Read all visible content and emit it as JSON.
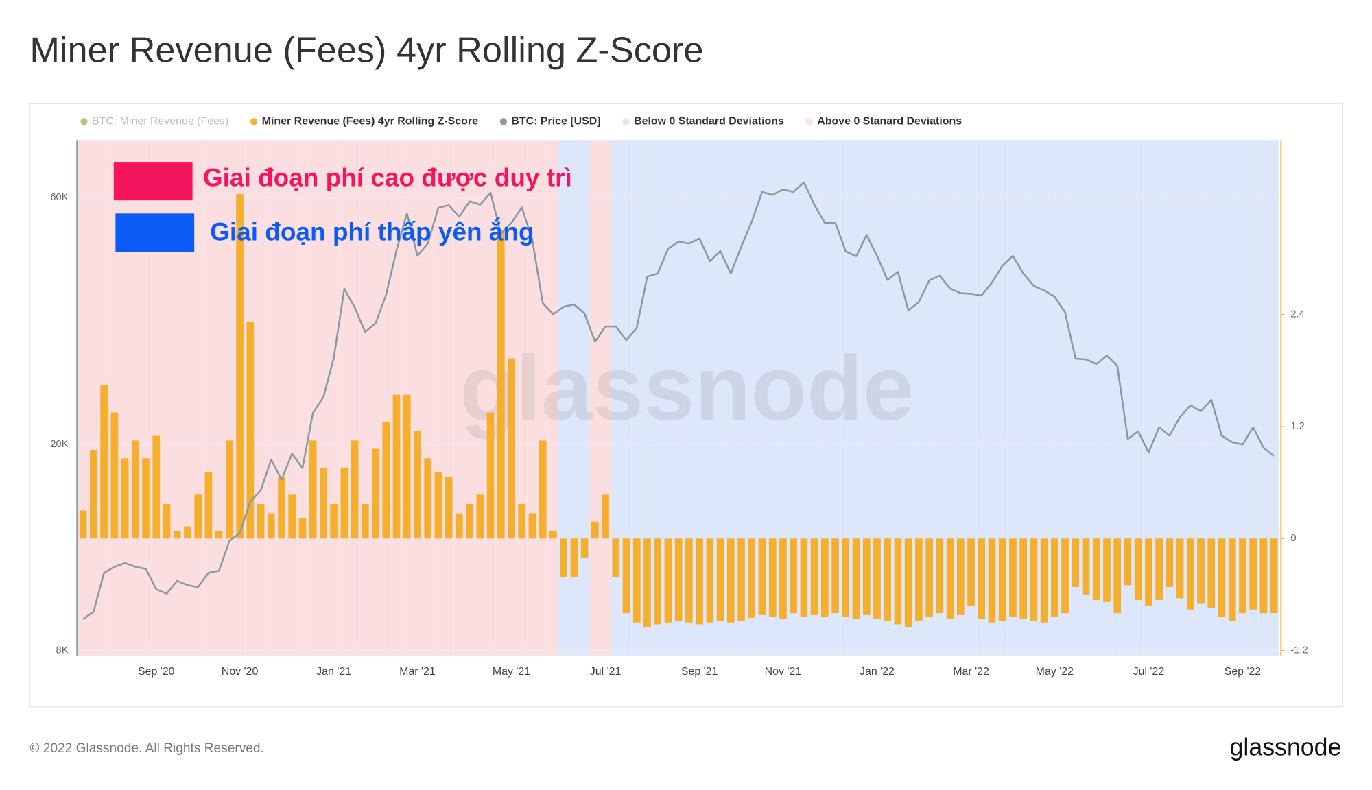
{
  "chart_data": {
    "type": "bar-line",
    "title": "Miner Revenue (Fees) 4yr Rolling Z-Score",
    "legend_disabled": {
      "name": "BTC: Miner Revenue (Fees)",
      "color": "#7d9a2c"
    },
    "series": [
      {
        "name": "Miner Revenue (Fees) 4yr Rolling Z-Score",
        "color": "#f6ae2d",
        "axis": "y2",
        "values": [
          0.3,
          0.95,
          1.64,
          1.35,
          0.86,
          1.05,
          0.86,
          1.1,
          0.37,
          0.08,
          0.13,
          0.47,
          0.71,
          0.08,
          1.05,
          3.69,
          2.32,
          0.37,
          0.27,
          0.66,
          0.47,
          0.22,
          1.05,
          0.76,
          0.37,
          0.76,
          1.05,
          0.37,
          0.96,
          1.25,
          1.54,
          1.54,
          1.15,
          0.86,
          0.71,
          0.66,
          0.27,
          0.37,
          0.47,
          1.35,
          3.3,
          1.93,
          0.37,
          0.27,
          1.05,
          0.08,
          -0.41,
          -0.41,
          -0.21,
          0.18,
          0.47,
          -0.41,
          -0.8,
          -0.9,
          -0.95,
          -0.92,
          -0.9,
          -0.88,
          -0.9,
          -0.92,
          -0.9,
          -0.88,
          -0.9,
          -0.88,
          -0.85,
          -0.82,
          -0.84,
          -0.86,
          -0.8,
          -0.84,
          -0.82,
          -0.84,
          -0.8,
          -0.84,
          -0.86,
          -0.82,
          -0.86,
          -0.88,
          -0.92,
          -0.95,
          -0.88,
          -0.84,
          -0.8,
          -0.86,
          -0.82,
          -0.72,
          -0.86,
          -0.9,
          -0.88,
          -0.84,
          -0.86,
          -0.88,
          -0.9,
          -0.84,
          -0.8,
          -0.52,
          -0.6,
          -0.66,
          -0.68,
          -0.8,
          -0.5,
          -0.66,
          -0.72,
          -0.66,
          -0.52,
          -0.64,
          -0.76,
          -0.7,
          -0.74,
          -0.84,
          -0.88,
          -0.8,
          -0.76,
          -0.8,
          -0.8
        ]
      },
      {
        "name": "BTC: Price [USD]",
        "color": "#8a98a4",
        "values": [
          9200,
          9500,
          11300,
          11600,
          11800,
          11600,
          11500,
          10500,
          10300,
          10900,
          10700,
          10600,
          11300,
          11400,
          13000,
          13500,
          15500,
          16300,
          18700,
          17100,
          19200,
          18000,
          23000,
          24700,
          29400,
          40000,
          36800,
          33000,
          34300,
          38900,
          47500,
          55900,
          46300,
          48900,
          57300,
          58000,
          55100,
          59000,
          58100,
          61300,
          51100,
          53600,
          57400,
          49700,
          37500,
          35700,
          36900,
          37300,
          35800,
          31600,
          33800,
          33800,
          31800,
          33600,
          42200,
          42800,
          47800,
          49300,
          48900,
          50000,
          45200,
          47300,
          42800,
          48200,
          53900,
          61500,
          60700,
          62200,
          61500,
          64200,
          58100,
          53600,
          53700,
          47200,
          46200,
          50800,
          46300,
          41600,
          43100,
          36300,
          37700,
          41500,
          42400,
          40000,
          39200,
          39100,
          38800,
          41100,
          44300,
          46300,
          42800,
          40500,
          39700,
          38600,
          36000,
          29300,
          29200,
          28600,
          29700,
          28400,
          20500,
          21200,
          19300,
          21600,
          20800,
          22600,
          23800,
          23200,
          24400,
          20800,
          20200,
          20000,
          21600,
          19700,
          19000
        ]
      }
    ],
    "shading": [
      {
        "name": "Below 0 Standard Deviations",
        "color": "#dde7fb"
      },
      {
        "name": "Above 0 Stanard Deviations",
        "color": "#fbdfe0"
      }
    ],
    "categories": [
      null,
      null,
      null,
      null,
      null,
      null,
      null,
      "Sep '20",
      null,
      null,
      null,
      null,
      null,
      null,
      null,
      "Nov '20",
      null,
      null,
      null,
      null,
      null,
      null,
      null,
      null,
      "Jan '21",
      null,
      null,
      null,
      null,
      null,
      null,
      null,
      "Mar '21",
      null,
      null,
      null,
      null,
      null,
      null,
      null,
      null,
      "May '21",
      null,
      null,
      null,
      null,
      null,
      null,
      null,
      null,
      "Jul '21",
      null,
      null,
      null,
      null,
      null,
      null,
      null,
      null,
      "Sep '21",
      null,
      null,
      null,
      null,
      null,
      null,
      null,
      "Nov '21",
      null,
      null,
      null,
      null,
      null,
      null,
      null,
      null,
      "Jan '22",
      null,
      null,
      null,
      null,
      null,
      null,
      null,
      null,
      "Mar '22",
      null,
      null,
      null,
      null,
      null,
      null,
      null,
      "May '22",
      null,
      null,
      null,
      null,
      null,
      null,
      null,
      null,
      "Jul '22",
      null,
      null,
      null,
      null,
      null,
      null,
      null,
      null,
      "Sep '22",
      null,
      null,
      null
    ],
    "ylim": [
      7800,
      77500
    ],
    "ylog": true,
    "yticks": [
      {
        "value": 8000,
        "label": "8K"
      },
      {
        "value": 20000,
        "label": "20K"
      },
      {
        "value": 60000,
        "label": "60K"
      }
    ],
    "y2lim": [
      -1.26,
      4.27
    ],
    "y2ticks": [
      -1.2,
      0,
      1.2,
      2.4
    ],
    "grid": true,
    "annotations": [
      {
        "text": "Giai đoạn phí cao được duy trì",
        "color": "#f5145e"
      },
      {
        "text": "Giai đoạn phí thấp yên ắng",
        "color": "#0b5cf5"
      }
    ],
    "watermark": "glassnode",
    "footer": "© 2022 Glassnode. All Rights Reserved.",
    "logo": "glassnode"
  }
}
